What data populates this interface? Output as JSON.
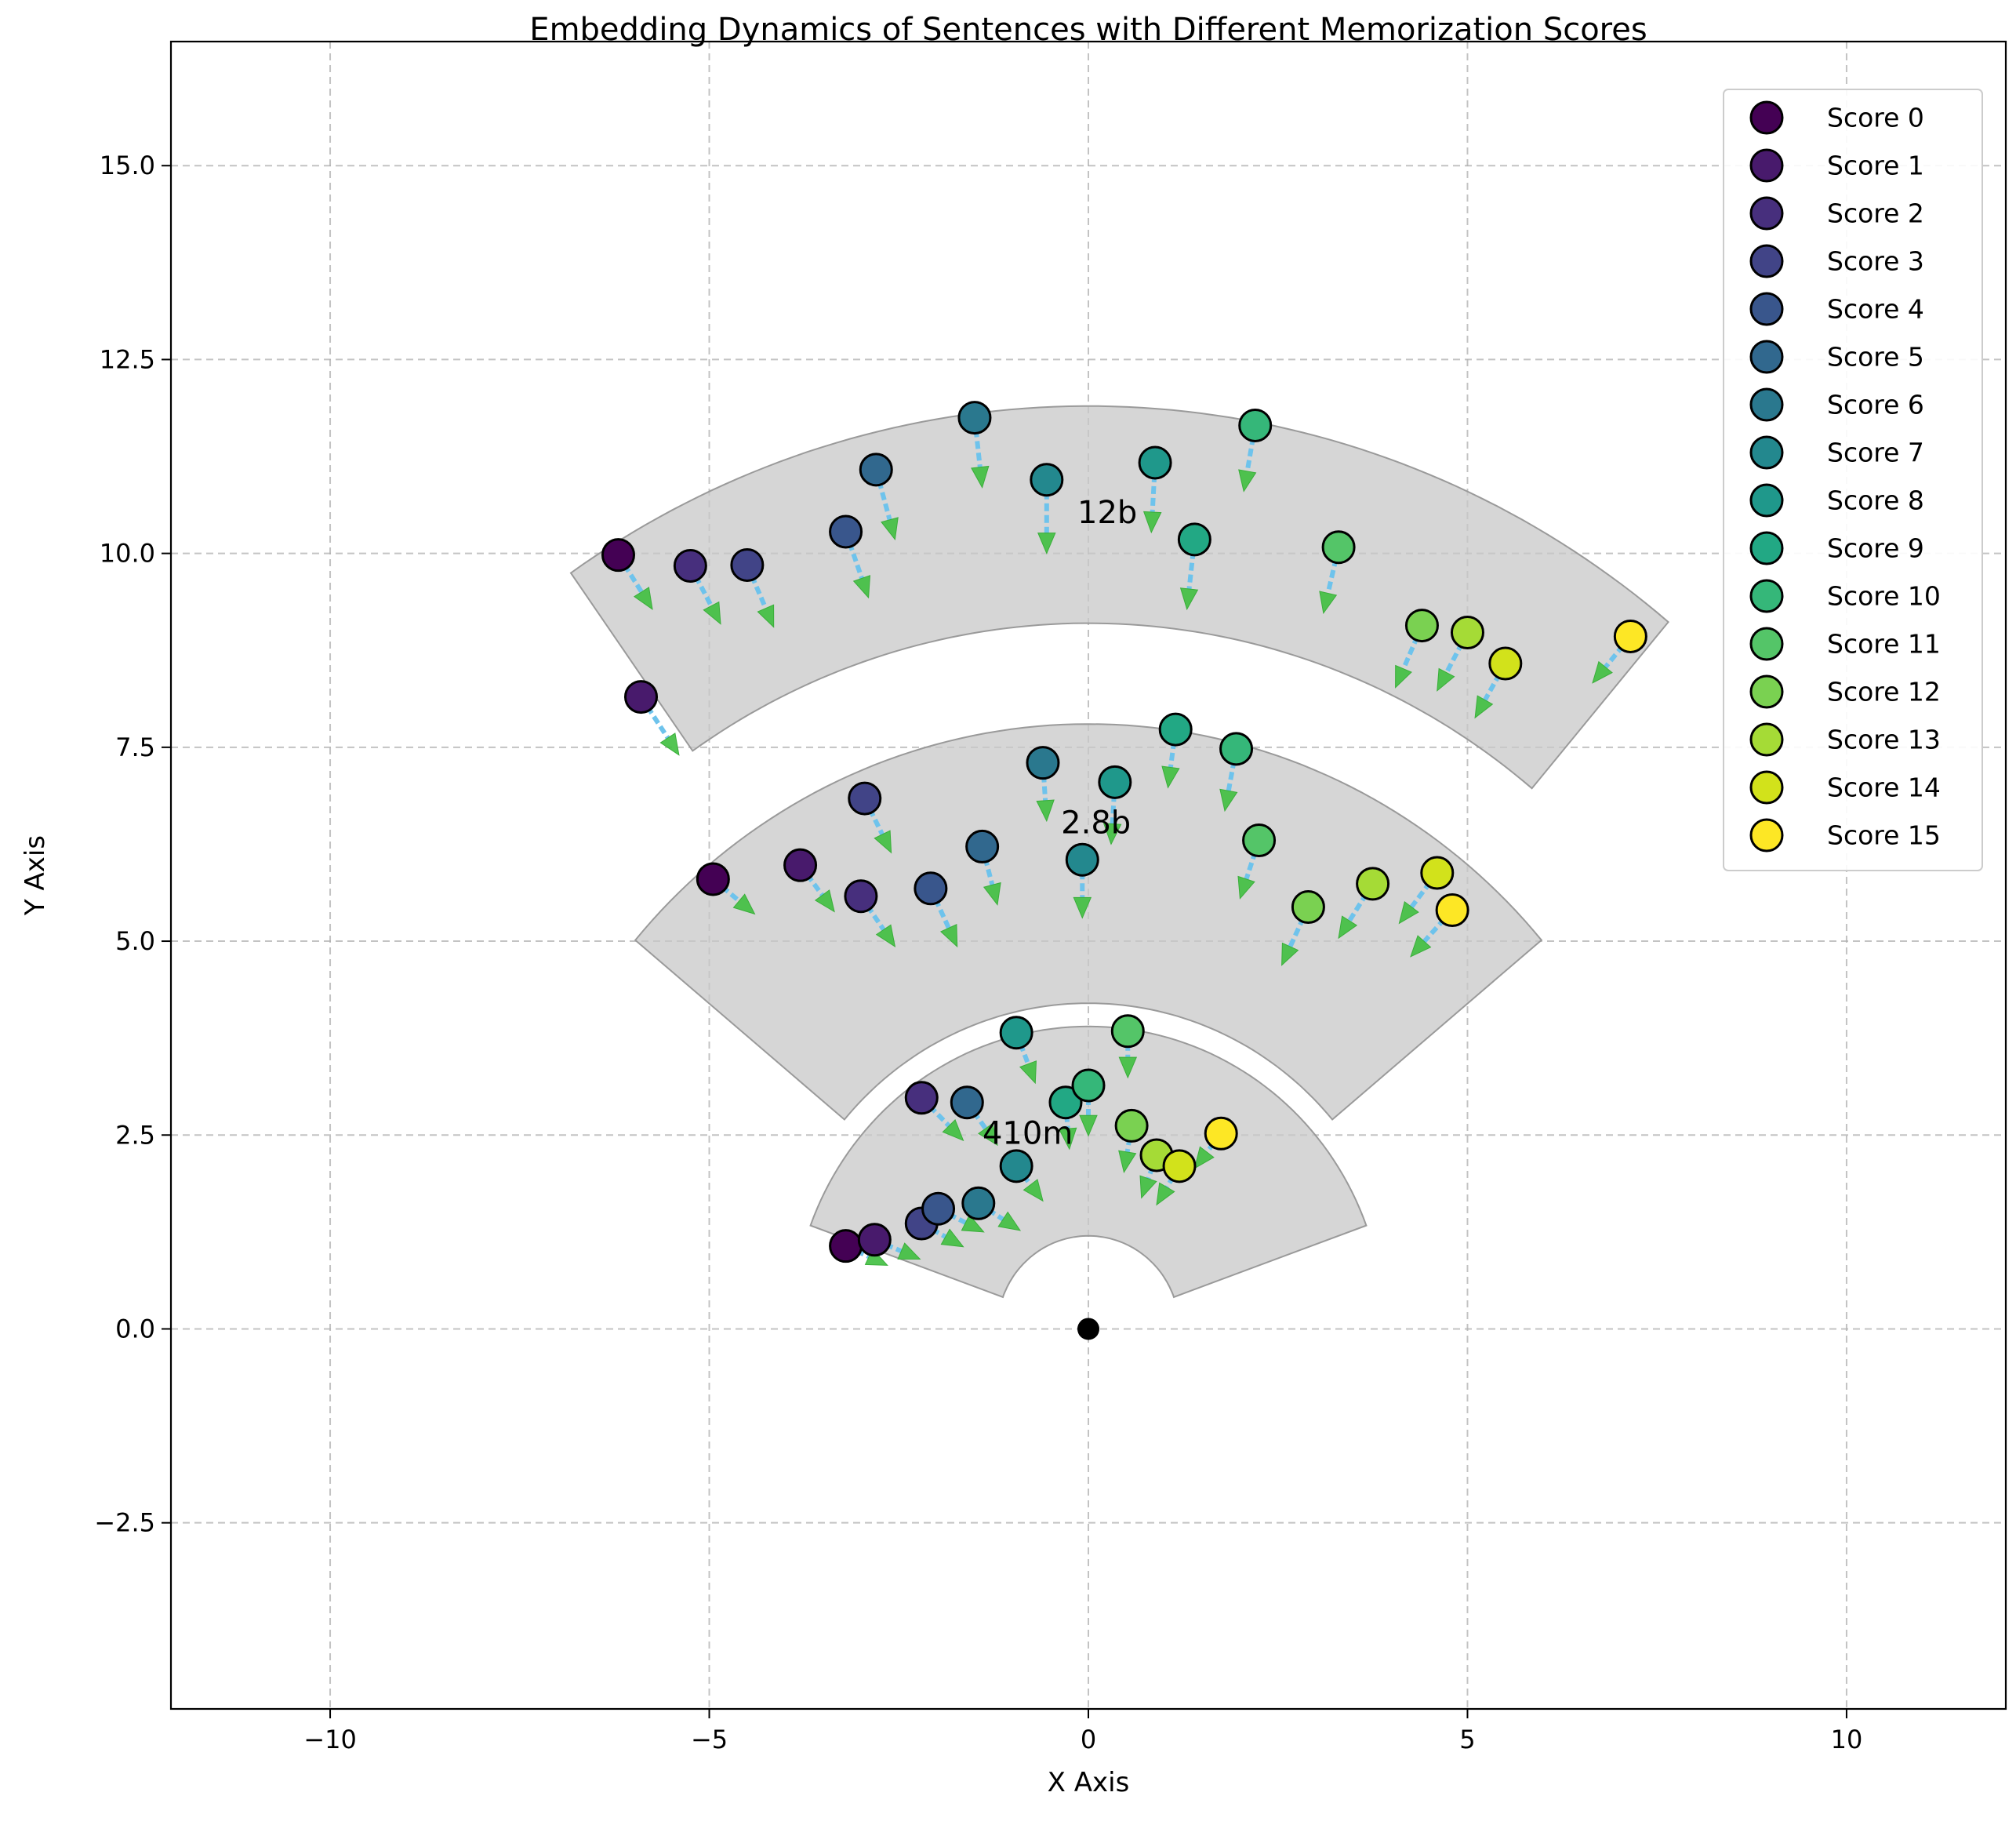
{
  "chart_data": {
    "type": "scatter",
    "title": "Embedding Dynamics of Sentences with Different Memorization Scores",
    "xlabel": "X Axis",
    "ylabel": "Y Axis",
    "xlim": [
      -12.1,
      12.1
    ],
    "ylim": [
      -4.9,
      16.6
    ],
    "xticks": [
      -10,
      -5,
      0,
      5,
      10
    ],
    "yticks": [
      -2.5,
      0.0,
      2.5,
      5.0,
      7.5,
      10.0,
      12.5,
      15.0
    ],
    "xtick_labels": [
      "−10",
      "−5",
      "0",
      "5",
      "10"
    ],
    "ytick_labels": [
      "−2.5",
      "0.0",
      "2.5",
      "5.0",
      "7.5",
      "10.0",
      "12.5",
      "15.0"
    ],
    "grid": true,
    "legend_position": "top-right",
    "origin_point": [
      0,
      0
    ],
    "score_colors": [
      "#440154",
      "#481a6c",
      "#472f7d",
      "#414487",
      "#39568c",
      "#31688e",
      "#2a788e",
      "#23888e",
      "#1f988b",
      "#22a884",
      "#35b779",
      "#54c568",
      "#7ad151",
      "#a5db36",
      "#d2e21b",
      "#fde725"
    ],
    "legend": [
      "Score 0",
      "Score 1",
      "Score 2",
      "Score 3",
      "Score 4",
      "Score 5",
      "Score 6",
      "Score 7",
      "Score 8",
      "Score 9",
      "Score 10",
      "Score 11",
      "Score 12",
      "Score 13",
      "Score 14",
      "Score 15"
    ],
    "sectors": [
      {
        "label": "410m",
        "r_inner": 1.2,
        "r_outer": 3.9,
        "angle_start": 20,
        "angle_end": 160,
        "label_pos": [
          -0.8,
          2.5
        ]
      },
      {
        "label": "2.8b",
        "r_inner": 4.2,
        "r_outer": 7.8,
        "angle_start": 40,
        "angle_end": 140,
        "label_pos": [
          0.1,
          6.5
        ]
      },
      {
        "label": "12b",
        "r_inner": 9.1,
        "r_outer": 11.9,
        "angle_start": 50,
        "angle_end": 125,
        "label_pos": [
          0.25,
          10.5
        ]
      }
    ],
    "points": [
      {
        "model": "410m",
        "score": 0,
        "x": -3.2,
        "y": 1.07,
        "dx": 0.55,
        "dy": -0.25
      },
      {
        "model": "410m",
        "score": 1,
        "x": -2.82,
        "y": 1.15,
        "dx": 0.6,
        "dy": -0.25
      },
      {
        "model": "410m",
        "score": 2,
        "x": -2.2,
        "y": 2.98,
        "dx": 0.55,
        "dy": -0.55
      },
      {
        "model": "410m",
        "score": 3,
        "x": -2.2,
        "y": 1.36,
        "dx": 0.55,
        "dy": -0.3
      },
      {
        "model": "410m",
        "score": 4,
        "x": -1.98,
        "y": 1.55,
        "dx": 0.6,
        "dy": -0.3
      },
      {
        "model": "410m",
        "score": 5,
        "x": -1.6,
        "y": 2.92,
        "dx": 0.4,
        "dy": -0.55
      },
      {
        "model": "410m",
        "score": 6,
        "x": -1.45,
        "y": 1.62,
        "dx": 0.55,
        "dy": -0.35
      },
      {
        "model": "410m",
        "score": 7,
        "x": -0.95,
        "y": 2.1,
        "dx": 0.35,
        "dy": -0.45
      },
      {
        "model": "410m",
        "score": 8,
        "x": -0.95,
        "y": 3.82,
        "dx": 0.25,
        "dy": -0.65
      },
      {
        "model": "410m",
        "score": 9,
        "x": -0.3,
        "y": 2.92,
        "dx": 0.05,
        "dy": -0.6
      },
      {
        "model": "410m",
        "score": 10,
        "x": 0.0,
        "y": 3.14,
        "dx": 0.0,
        "dy": -0.65
      },
      {
        "model": "410m",
        "score": 11,
        "x": 0.52,
        "y": 3.84,
        "dx": 0.0,
        "dy": -0.6
      },
      {
        "model": "410m",
        "score": 12,
        "x": 0.57,
        "y": 2.62,
        "dx": -0.1,
        "dy": -0.6
      },
      {
        "model": "410m",
        "score": 13,
        "x": 0.9,
        "y": 2.24,
        "dx": -0.2,
        "dy": -0.55
      },
      {
        "model": "410m",
        "score": 14,
        "x": 1.2,
        "y": 2.1,
        "dx": -0.3,
        "dy": -0.5
      },
      {
        "model": "410m",
        "score": 15,
        "x": 1.75,
        "y": 2.52,
        "dx": -0.35,
        "dy": -0.45
      },
      {
        "model": "2.8b",
        "score": 0,
        "x": -4.95,
        "y": 5.8,
        "dx": 0.55,
        "dy": -0.45
      },
      {
        "model": "2.8b",
        "score": 1,
        "x": -3.8,
        "y": 5.98,
        "dx": 0.45,
        "dy": -0.6
      },
      {
        "model": "2.8b",
        "score": 2,
        "x": -3.0,
        "y": 5.58,
        "dx": 0.45,
        "dy": -0.65
      },
      {
        "model": "2.8b",
        "score": 3,
        "x": -2.95,
        "y": 6.84,
        "dx": 0.35,
        "dy": -0.7
      },
      {
        "model": "2.8b",
        "score": 4,
        "x": -2.08,
        "y": 5.68,
        "dx": 0.35,
        "dy": -0.75
      },
      {
        "model": "2.8b",
        "score": 5,
        "x": -1.4,
        "y": 6.22,
        "dx": 0.2,
        "dy": -0.75
      },
      {
        "model": "2.8b",
        "score": 6,
        "x": -0.6,
        "y": 7.3,
        "dx": 0.05,
        "dy": -0.75
      },
      {
        "model": "2.8b",
        "score": 7,
        "x": -0.08,
        "y": 6.05,
        "dx": 0.0,
        "dy": -0.75
      },
      {
        "model": "2.8b",
        "score": 8,
        "x": 0.35,
        "y": 7.05,
        "dx": -0.05,
        "dy": -0.8
      },
      {
        "model": "2.8b",
        "score": 9,
        "x": 1.15,
        "y": 7.73,
        "dx": -0.1,
        "dy": -0.75
      },
      {
        "model": "2.8b",
        "score": 10,
        "x": 1.95,
        "y": 7.48,
        "dx": -0.15,
        "dy": -0.8
      },
      {
        "model": "2.8b",
        "score": 11,
        "x": 2.25,
        "y": 6.3,
        "dx": -0.25,
        "dy": -0.75
      },
      {
        "model": "2.8b",
        "score": 12,
        "x": 2.9,
        "y": 5.44,
        "dx": -0.35,
        "dy": -0.75
      },
      {
        "model": "2.8b",
        "score": 13,
        "x": 3.75,
        "y": 5.74,
        "dx": -0.45,
        "dy": -0.7
      },
      {
        "model": "2.8b",
        "score": 14,
        "x": 4.6,
        "y": 5.88,
        "dx": -0.5,
        "dy": -0.65
      },
      {
        "model": "2.8b",
        "score": 15,
        "x": 4.8,
        "y": 5.4,
        "dx": -0.55,
        "dy": -0.6
      },
      {
        "model": "12b",
        "score": 0,
        "x": -6.2,
        "y": 9.98,
        "dx": 0.45,
        "dy": -0.7
      },
      {
        "model": "12b",
        "score": 1,
        "x": -5.9,
        "y": 8.15,
        "dx": 0.5,
        "dy": -0.75
      },
      {
        "model": "12b",
        "score": 2,
        "x": -5.25,
        "y": 9.84,
        "dx": 0.4,
        "dy": -0.75
      },
      {
        "model": "12b",
        "score": 3,
        "x": -4.5,
        "y": 9.85,
        "dx": 0.35,
        "dy": -0.8
      },
      {
        "model": "12b",
        "score": 4,
        "x": -3.2,
        "y": 10.28,
        "dx": 0.3,
        "dy": -0.85
      },
      {
        "model": "12b",
        "score": 5,
        "x": -2.8,
        "y": 11.08,
        "dx": 0.25,
        "dy": -0.9
      },
      {
        "model": "12b",
        "score": 6,
        "x": -1.5,
        "y": 11.75,
        "dx": 0.1,
        "dy": -0.9
      },
      {
        "model": "12b",
        "score": 7,
        "x": -0.55,
        "y": 10.95,
        "dx": 0.0,
        "dy": -0.95
      },
      {
        "model": "12b",
        "score": 8,
        "x": 0.88,
        "y": 11.17,
        "dx": -0.05,
        "dy": -0.9
      },
      {
        "model": "12b",
        "score": 9,
        "x": 1.4,
        "y": 10.18,
        "dx": -0.1,
        "dy": -0.9
      },
      {
        "model": "12b",
        "score": 10,
        "x": 2.2,
        "y": 11.65,
        "dx": -0.15,
        "dy": -0.85
      },
      {
        "model": "12b",
        "score": 11,
        "x": 3.3,
        "y": 10.08,
        "dx": -0.2,
        "dy": -0.85
      },
      {
        "model": "12b",
        "score": 12,
        "x": 4.4,
        "y": 9.07,
        "dx": -0.35,
        "dy": -0.8
      },
      {
        "model": "12b",
        "score": 13,
        "x": 5.0,
        "y": 8.98,
        "dx": -0.4,
        "dy": -0.75
      },
      {
        "model": "12b",
        "score": 14,
        "x": 5.5,
        "y": 8.58,
        "dx": -0.4,
        "dy": -0.7
      },
      {
        "model": "12b",
        "score": 15,
        "x": 7.15,
        "y": 8.93,
        "dx": -0.5,
        "dy": -0.6
      }
    ]
  }
}
